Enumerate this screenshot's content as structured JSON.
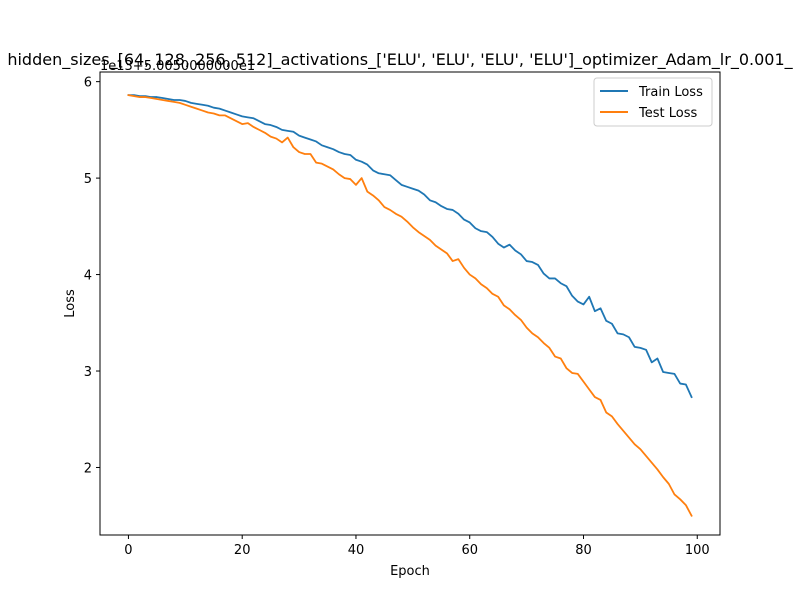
{
  "chart_data": {
    "type": "line",
    "title": "hidden_sizes_[64, 128, 256, 512]_activations_['ELU', 'ELU', 'ELU', 'ELU']_optimizer_Adam_lr_0.001_",
    "offset_text": "1e13+5.0050000000e1",
    "xlabel": "Epoch",
    "ylabel": "Loss",
    "xlim": [
      -5,
      104
    ],
    "ylim": [
      1.3,
      6.1
    ],
    "xticks": [
      0,
      20,
      40,
      60,
      80,
      100
    ],
    "yticks": [
      2,
      3,
      4,
      5,
      6
    ],
    "legend_position": "upper right",
    "series": [
      {
        "name": "Train Loss",
        "color": "#1f77b4",
        "x": [
          0,
          1,
          2,
          3,
          4,
          5,
          6,
          7,
          8,
          9,
          10,
          11,
          12,
          13,
          14,
          15,
          16,
          17,
          18,
          19,
          20,
          21,
          22,
          23,
          24,
          25,
          26,
          27,
          28,
          29,
          30,
          31,
          32,
          33,
          34,
          35,
          36,
          37,
          38,
          39,
          40,
          41,
          42,
          43,
          44,
          45,
          46,
          47,
          48,
          49,
          50,
          51,
          52,
          53,
          54,
          55,
          56,
          57,
          58,
          59,
          60,
          61,
          62,
          63,
          64,
          65,
          66,
          67,
          68,
          69,
          70,
          71,
          72,
          73,
          74,
          75,
          76,
          77,
          78,
          79,
          80,
          81,
          82,
          83,
          84,
          85,
          86,
          87,
          88,
          89,
          90,
          91,
          92,
          93,
          94,
          95,
          96,
          97,
          98,
          99
        ],
        "y": [
          5.86,
          5.86,
          5.85,
          5.85,
          5.84,
          5.84,
          5.83,
          5.82,
          5.81,
          5.81,
          5.8,
          5.78,
          5.77,
          5.76,
          5.75,
          5.73,
          5.72,
          5.7,
          5.68,
          5.66,
          5.64,
          5.63,
          5.62,
          5.59,
          5.56,
          5.55,
          5.53,
          5.5,
          5.49,
          5.48,
          5.44,
          5.42,
          5.4,
          5.38,
          5.34,
          5.32,
          5.3,
          5.27,
          5.25,
          5.24,
          5.19,
          5.17,
          5.14,
          5.08,
          5.05,
          5.04,
          5.03,
          4.98,
          4.93,
          4.91,
          4.89,
          4.87,
          4.83,
          4.77,
          4.75,
          4.71,
          4.68,
          4.67,
          4.63,
          4.57,
          4.54,
          4.48,
          4.45,
          4.44,
          4.39,
          4.32,
          4.28,
          4.31,
          4.25,
          4.21,
          4.14,
          4.13,
          4.1,
          4.01,
          3.96,
          3.96,
          3.91,
          3.88,
          3.78,
          3.72,
          3.69,
          3.77,
          3.62,
          3.65,
          3.52,
          3.49,
          3.39,
          3.38,
          3.35,
          3.25,
          3.24,
          3.22,
          3.09,
          3.13,
          2.99,
          2.98,
          2.97,
          2.87,
          2.86,
          2.73
        ]
      },
      {
        "name": "Test Loss",
        "color": "#ff7f0e",
        "x": [
          0,
          1,
          2,
          3,
          4,
          5,
          6,
          7,
          8,
          9,
          10,
          11,
          12,
          13,
          14,
          15,
          16,
          17,
          18,
          19,
          20,
          21,
          22,
          23,
          24,
          25,
          26,
          27,
          28,
          29,
          30,
          31,
          32,
          33,
          34,
          35,
          36,
          37,
          38,
          39,
          40,
          41,
          42,
          43,
          44,
          45,
          46,
          47,
          48,
          49,
          50,
          51,
          52,
          53,
          54,
          55,
          56,
          57,
          58,
          59,
          60,
          61,
          62,
          63,
          64,
          65,
          66,
          67,
          68,
          69,
          70,
          71,
          72,
          73,
          74,
          75,
          76,
          77,
          78,
          79,
          80,
          81,
          82,
          83,
          84,
          85,
          86,
          87,
          88,
          89,
          90,
          91,
          92,
          93,
          94,
          95,
          96,
          97,
          98,
          99
        ],
        "y": [
          5.86,
          5.85,
          5.84,
          5.84,
          5.83,
          5.82,
          5.81,
          5.8,
          5.79,
          5.78,
          5.76,
          5.74,
          5.72,
          5.7,
          5.68,
          5.67,
          5.65,
          5.65,
          5.62,
          5.59,
          5.56,
          5.57,
          5.53,
          5.5,
          5.47,
          5.43,
          5.41,
          5.37,
          5.42,
          5.32,
          5.27,
          5.25,
          5.25,
          5.16,
          5.15,
          5.12,
          5.09,
          5.04,
          5.0,
          4.99,
          4.93,
          5.0,
          4.86,
          4.82,
          4.77,
          4.7,
          4.67,
          4.63,
          4.6,
          4.55,
          4.49,
          4.44,
          4.4,
          4.36,
          4.3,
          4.26,
          4.22,
          4.14,
          4.16,
          4.07,
          4.0,
          3.96,
          3.9,
          3.86,
          3.8,
          3.77,
          3.68,
          3.64,
          3.58,
          3.53,
          3.45,
          3.39,
          3.35,
          3.29,
          3.24,
          3.15,
          3.13,
          3.03,
          2.98,
          2.97,
          2.89,
          2.81,
          2.73,
          2.7,
          2.57,
          2.53,
          2.45,
          2.38,
          2.31,
          2.24,
          2.19,
          2.12,
          2.05,
          1.98,
          1.9,
          1.83,
          1.72,
          1.67,
          1.61,
          1.5
        ]
      }
    ]
  }
}
